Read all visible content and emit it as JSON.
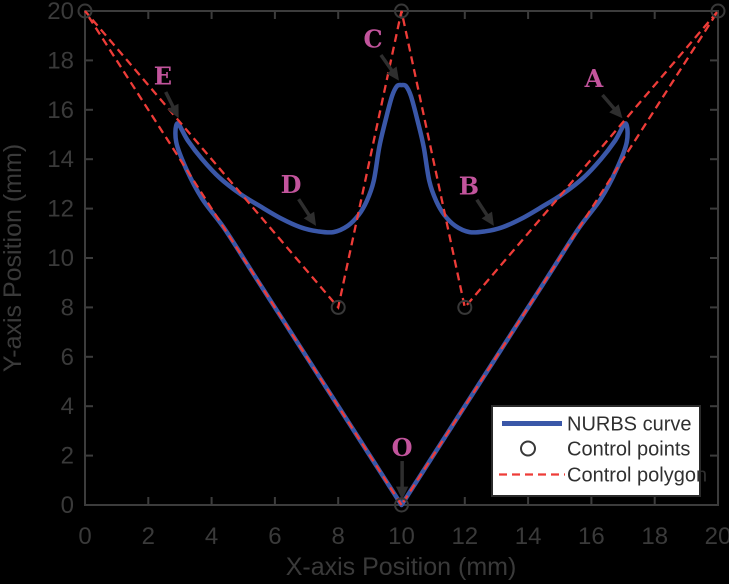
{
  "figure": {
    "background": "#000000",
    "frame_color": "#3c3c3c",
    "text_color": "#3a3a3a",
    "arrow_color": "#2e2e2e",
    "marker_color": "#383838",
    "annotation_color": "#c2549c",
    "legend_bg": "#ffffff",
    "legend_border": "#2b2b2b",
    "legend_text_color": "#303030"
  },
  "chart_data": {
    "type": "line",
    "title": "",
    "xlabel": "X-axis Position (mm)",
    "ylabel": "Y-axis Position (mm)",
    "xlim": [
      0,
      20
    ],
    "ylim": [
      0,
      20
    ],
    "xticks": [
      0,
      2,
      4,
      6,
      8,
      10,
      12,
      14,
      16,
      18,
      20
    ],
    "yticks": [
      0,
      2,
      4,
      6,
      8,
      10,
      12,
      14,
      16,
      18,
      20
    ],
    "grid": false,
    "legend": {
      "position": "lower right",
      "entries": [
        {
          "label": "NURBS curve",
          "swatch": "line",
          "color": "#3a57a8"
        },
        {
          "label": "Control points",
          "swatch": "circle",
          "color": "#383838"
        },
        {
          "label": "Control polygon",
          "swatch": "dash",
          "color": "#ee3c38"
        }
      ]
    },
    "series": [
      {
        "name": "NURBS curve",
        "type": "smooth-line",
        "color": "#3a57a8",
        "width": 4.5,
        "points": [
          [
            10,
            0
          ],
          [
            9.2,
            1.6
          ],
          [
            8.3,
            3.4
          ],
          [
            7.3,
            5.4
          ],
          [
            6.3,
            7.4
          ],
          [
            5.3,
            9.4
          ],
          [
            4.4,
            11.2
          ],
          [
            3.7,
            12.4
          ],
          [
            3.2,
            13.6
          ],
          [
            2.88,
            14.7
          ],
          [
            2.92,
            15.45
          ],
          [
            3.25,
            14.75
          ],
          [
            3.7,
            14.0
          ],
          [
            4.25,
            13.25
          ],
          [
            4.9,
            12.6
          ],
          [
            5.55,
            12.08
          ],
          [
            6.2,
            11.6
          ],
          [
            6.8,
            11.25
          ],
          [
            7.35,
            11.08
          ],
          [
            7.85,
            11.05
          ],
          [
            8.3,
            11.3
          ],
          [
            8.65,
            11.75
          ],
          [
            8.9,
            12.3
          ],
          [
            9.12,
            13.1
          ],
          [
            9.3,
            14.5
          ],
          [
            9.5,
            15.6
          ],
          [
            9.7,
            16.55
          ],
          [
            9.85,
            16.95
          ],
          [
            10.0,
            17.0
          ],
          [
            10.15,
            16.95
          ],
          [
            10.3,
            16.55
          ],
          [
            10.5,
            15.6
          ],
          [
            10.7,
            14.5
          ],
          [
            10.88,
            13.1
          ],
          [
            11.1,
            12.3
          ],
          [
            11.35,
            11.75
          ],
          [
            11.7,
            11.3
          ],
          [
            12.15,
            11.05
          ],
          [
            12.65,
            11.08
          ],
          [
            13.2,
            11.25
          ],
          [
            13.8,
            11.6
          ],
          [
            14.45,
            12.08
          ],
          [
            15.1,
            12.6
          ],
          [
            15.75,
            13.25
          ],
          [
            16.3,
            14.0
          ],
          [
            16.75,
            14.75
          ],
          [
            17.08,
            15.45
          ],
          [
            17.12,
            14.7
          ],
          [
            16.8,
            13.6
          ],
          [
            16.3,
            12.4
          ],
          [
            15.6,
            11.2
          ],
          [
            14.7,
            9.4
          ],
          [
            13.7,
            7.4
          ],
          [
            12.7,
            5.4
          ],
          [
            11.7,
            3.4
          ],
          [
            10.8,
            1.6
          ],
          [
            10,
            0
          ]
        ]
      },
      {
        "name": "Control polygon",
        "type": "dashed-line",
        "color": "#ee3c38",
        "width": 2.3,
        "dash": "8 5",
        "points": [
          [
            10,
            0
          ],
          [
            0,
            20
          ],
          [
            8,
            8
          ],
          [
            10,
            20
          ],
          [
            12,
            8
          ],
          [
            20,
            20
          ],
          [
            10,
            0
          ]
        ]
      },
      {
        "name": "Control points",
        "type": "scatter",
        "color": "#383838",
        "radius": 6.5,
        "stroke_width": 2,
        "points": [
          [
            0,
            20
          ],
          [
            8,
            8
          ],
          [
            10,
            20
          ],
          [
            12,
            8
          ],
          [
            20,
            20
          ],
          [
            10,
            0
          ]
        ]
      }
    ],
    "annotations": [
      {
        "label": "E",
        "label_pos": [
          2.46,
          17.35
        ],
        "arrow_from": [
          2.55,
          16.72
        ],
        "arrow_to": [
          2.96,
          15.66
        ]
      },
      {
        "label": "C",
        "label_pos": [
          9.1,
          18.85
        ],
        "arrow_from": [
          9.35,
          18.22
        ],
        "arrow_to": [
          9.92,
          17.18
        ]
      },
      {
        "label": "A",
        "label_pos": [
          16.08,
          17.25
        ],
        "arrow_from": [
          16.35,
          16.6
        ],
        "arrow_to": [
          16.98,
          15.66
        ]
      },
      {
        "label": "D",
        "label_pos": [
          6.51,
          12.95
        ],
        "arrow_from": [
          6.75,
          12.38
        ],
        "arrow_to": [
          7.3,
          11.3
        ]
      },
      {
        "label": "B",
        "label_pos": [
          12.13,
          12.9
        ],
        "arrow_from": [
          12.38,
          12.36
        ],
        "arrow_to": [
          12.92,
          11.3
        ]
      },
      {
        "label": "O",
        "label_pos": [
          10.02,
          2.3
        ],
        "arrow_from": [
          10.02,
          1.78
        ],
        "arrow_to": [
          10.02,
          0.22
        ]
      }
    ]
  }
}
